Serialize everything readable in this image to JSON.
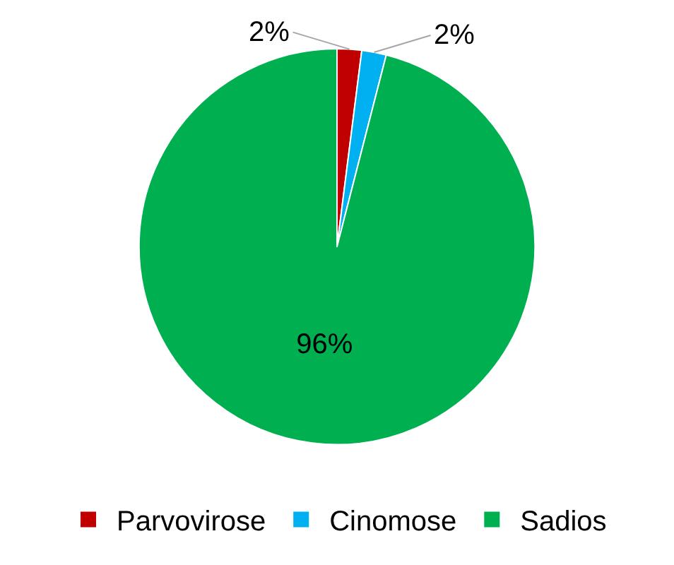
{
  "chart_data": {
    "type": "pie",
    "categories": [
      "Parvovirose",
      "Cinomose",
      "Sadios"
    ],
    "values": [
      2,
      2,
      96
    ],
    "colors": [
      "#c00000",
      "#00b0f0",
      "#00b050"
    ],
    "value_labels": [
      "2%",
      "2%",
      "96%"
    ],
    "legend": "bottom"
  }
}
